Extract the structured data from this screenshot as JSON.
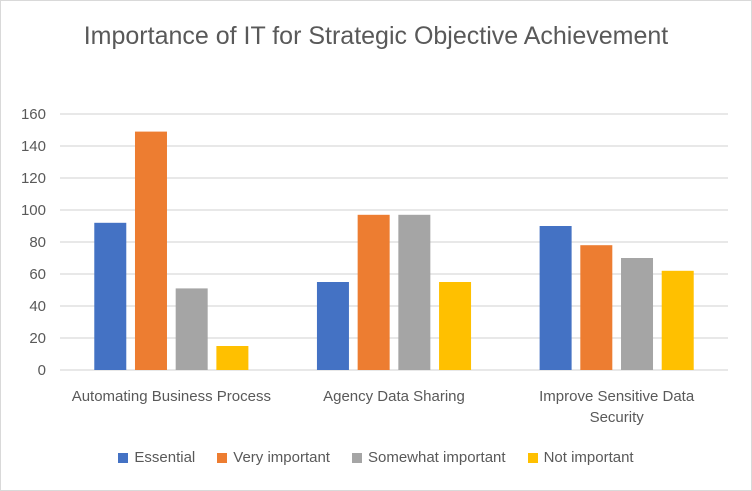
{
  "chart_data": {
    "type": "bar",
    "title": "Importance of IT for Strategic Objective Achievement",
    "categories": [
      "Automating Business Process",
      "Agency Data Sharing",
      "Improve Sensitive Data Security"
    ],
    "series": [
      {
        "name": "Essential",
        "color": "#4472C4",
        "values": [
          92,
          55,
          90
        ]
      },
      {
        "name": "Very important",
        "color": "#ED7D31",
        "values": [
          149,
          97,
          78
        ]
      },
      {
        "name": "Somewhat important",
        "color": "#A5A5A5",
        "values": [
          51,
          97,
          70
        ]
      },
      {
        "name": "Not important",
        "color": "#FFC000",
        "values": [
          15,
          55,
          62
        ]
      }
    ],
    "xlabel": "",
    "ylabel": "",
    "ylim": [
      0,
      160
    ],
    "yticks": [
      "0",
      "20",
      "40",
      "60",
      "80",
      "100",
      "120",
      "140",
      "160"
    ],
    "grid": true,
    "legend_position": "bottom"
  }
}
